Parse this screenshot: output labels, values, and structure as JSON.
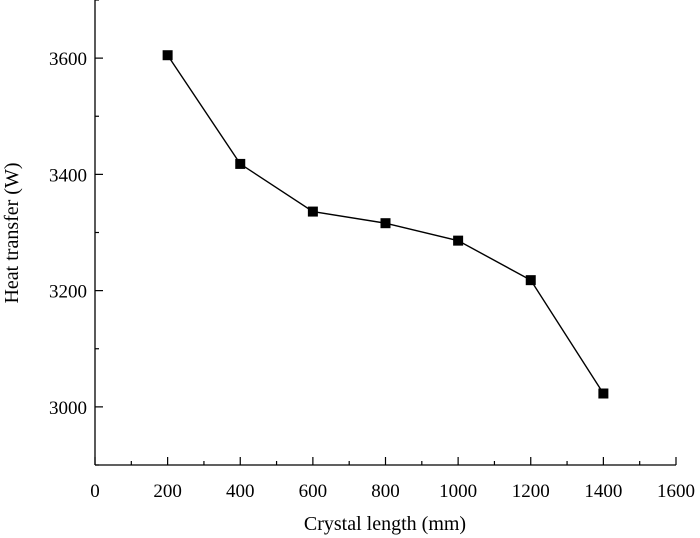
{
  "chart_data": {
    "type": "line",
    "xlabel": "Crystal length (mm)",
    "ylabel": "Heat transfer (W)",
    "xlim": [
      0,
      1600
    ],
    "ylim": [
      2900,
      3700
    ],
    "xticks": [
      0,
      200,
      400,
      600,
      800,
      1000,
      1200,
      1400,
      1600
    ],
    "yticks": [
      3000,
      3200,
      3400,
      3600
    ],
    "grid": false,
    "marker": "square",
    "color": "#000000",
    "series": [
      {
        "x": [
          200,
          400,
          600,
          800,
          1000,
          1200,
          1400
        ],
        "y": [
          3605,
          3418,
          3336,
          3316,
          3286,
          3218,
          3023
        ]
      }
    ]
  }
}
